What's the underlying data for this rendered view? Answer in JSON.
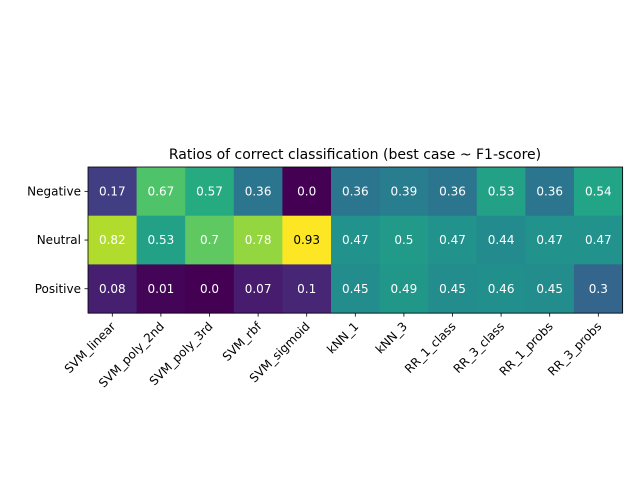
{
  "chart_data": {
    "type": "heatmap",
    "title": "Ratios of correct classification (best case ~ F1-score)",
    "xlabel": "",
    "ylabel": "",
    "x_categories": [
      "SVM_linear",
      "SVM_poly_2nd",
      "SVM_poly_3rd",
      "SVM_rbf",
      "SVM_sigmoid",
      "kNN_1",
      "kNN_3",
      "RR_1_class",
      "RR_3_class",
      "RR_1_probs",
      "RR_3_probs"
    ],
    "y_categories": [
      "Negative",
      "Neutral",
      "Positive"
    ],
    "values": [
      [
        0.17,
        0.67,
        0.57,
        0.36,
        0.0,
        0.36,
        0.39,
        0.36,
        0.53,
        0.36,
        0.54
      ],
      [
        0.82,
        0.53,
        0.7,
        0.78,
        0.93,
        0.47,
        0.5,
        0.47,
        0.44,
        0.47,
        0.47
      ],
      [
        0.08,
        0.01,
        0.0,
        0.07,
        0.1,
        0.45,
        0.49,
        0.45,
        0.46,
        0.45,
        0.3
      ]
    ],
    "value_labels": [
      [
        "0.17",
        "0.67",
        "0.57",
        "0.36",
        "0.0",
        "0.36",
        "0.39",
        "0.36",
        "0.53",
        "0.36",
        "0.54"
      ],
      [
        "0.82",
        "0.53",
        "0.7",
        "0.78",
        "0.93",
        "0.47",
        "0.5",
        "0.47",
        "0.44",
        "0.47",
        "0.47"
      ],
      [
        "0.08",
        "0.01",
        "0.0",
        "0.07",
        "0.1",
        "0.45",
        "0.49",
        "0.45",
        "0.46",
        "0.45",
        "0.3"
      ]
    ],
    "colormap": "viridis",
    "color_range": [
      0.0,
      0.93
    ],
    "x_tick_rotation": 45,
    "legend": "none",
    "grid": false
  }
}
